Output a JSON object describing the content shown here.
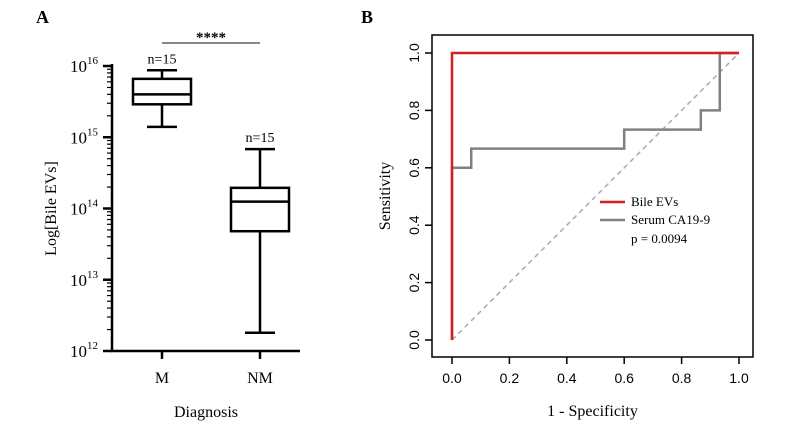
{
  "panels": {
    "a_label": "A",
    "b_label": "B"
  },
  "chart_data": [
    {
      "type": "box",
      "xlabel": "Diagnosis",
      "ylabel": "Log[Bile EVs]",
      "y_scale": "log",
      "ylim": [
        1000000000000.0,
        1e+16
      ],
      "y_ticks": [
        {
          "base": "10",
          "exp": "12"
        },
        {
          "base": "10",
          "exp": "13"
        },
        {
          "base": "10",
          "exp": "14"
        },
        {
          "base": "10",
          "exp": "15"
        },
        {
          "base": "10",
          "exp": "16"
        }
      ],
      "categories": [
        "M",
        "NM"
      ],
      "boxes": [
        {
          "category": "M",
          "n_label": "n=15",
          "min": 1400000000000000.0,
          "q1": 2900000000000000.0,
          "median": 4000000000000000.0,
          "q3": 6600000000000000.0,
          "max": 8700000000000000.0
        },
        {
          "category": "NM",
          "n_label": "n=15",
          "min": 1800000000000.0,
          "q1": 48000000000000.0,
          "median": 125000000000000.0,
          "q3": 195000000000000.0,
          "max": 680000000000000.0
        }
      ],
      "significance": "****"
    },
    {
      "type": "line",
      "xlabel": "1 - Specificity",
      "ylabel": "Sensitivity",
      "xlim": [
        0,
        1
      ],
      "ylim": [
        0,
        1
      ],
      "x_ticks": [
        "0.0",
        "0.2",
        "0.4",
        "0.6",
        "0.8",
        "1.0"
      ],
      "y_ticks": [
        "0.0",
        "0.2",
        "0.4",
        "0.6",
        "0.8",
        "1.0"
      ],
      "series": [
        {
          "name": "Bile EVs",
          "color": "#d62020",
          "points": [
            [
              0,
              0
            ],
            [
              0,
              0.6
            ],
            [
              0,
              1.0
            ],
            [
              0.933,
              1.0
            ],
            [
              0.933,
              1.0
            ],
            [
              1.0,
              1.0
            ]
          ]
        },
        {
          "name": "Serum CA19-9",
          "color": "#808080",
          "points": [
            [
              0,
              0
            ],
            [
              0,
              0.6
            ],
            [
              0.067,
              0.6
            ],
            [
              0.067,
              0.667
            ],
            [
              0.6,
              0.667
            ],
            [
              0.6,
              0.733
            ],
            [
              0.867,
              0.733
            ],
            [
              0.867,
              0.8
            ],
            [
              0.933,
              0.8
            ],
            [
              0.933,
              1.0
            ],
            [
              1.0,
              1.0
            ]
          ]
        }
      ],
      "reference_line": {
        "style": "dashed",
        "color": "#aaaaaa",
        "points": [
          [
            0,
            0
          ],
          [
            1,
            1
          ]
        ]
      },
      "annotation": "p = 0.0094",
      "legend_position": "center-right"
    }
  ]
}
